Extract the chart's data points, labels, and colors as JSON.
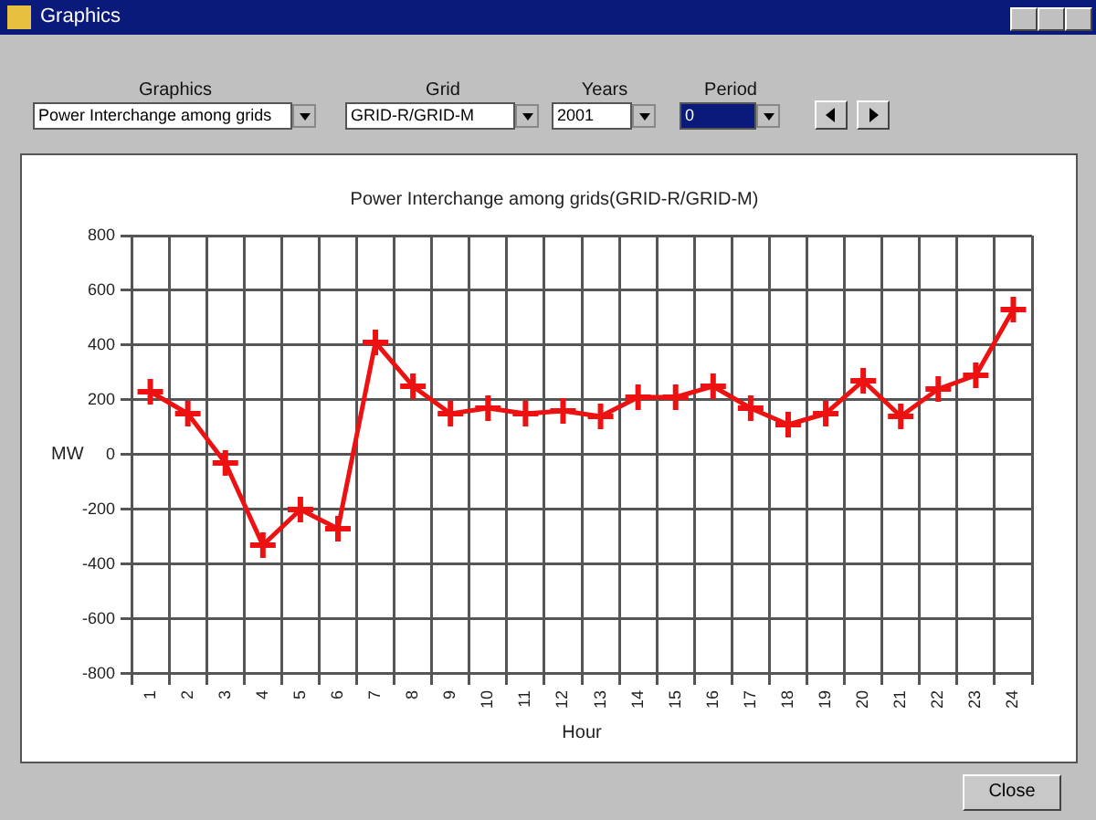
{
  "chart_data": {
    "type": "line",
    "title": "Power Interchange among grids(GRID-R/GRID-M)",
    "xlabel": "Hour",
    "ylabel": "MW",
    "categories": [
      "1",
      "2",
      "3",
      "4",
      "5",
      "6",
      "7",
      "8",
      "9",
      "10",
      "11",
      "12",
      "13",
      "14",
      "15",
      "16",
      "17",
      "18",
      "19",
      "20",
      "21",
      "22",
      "23",
      "24"
    ],
    "series": [
      {
        "color": "#ee1111",
        "values": [
          230,
          150,
          -30,
          -330,
          -200,
          -270,
          410,
          250,
          150,
          170,
          150,
          160,
          140,
          210,
          210,
          250,
          170,
          110,
          150,
          270,
          140,
          240,
          290,
          530
        ]
      }
    ],
    "ylim": [
      -800,
      800
    ],
    "yticks": [
      -800,
      -600,
      -400,
      -200,
      0,
      200,
      400,
      600,
      800
    ],
    "grid": true,
    "legend": false,
    "marker": "cross",
    "line_style": "solid",
    "annotations": [
      "Graphics",
      "Graphics",
      "Grid",
      "Years",
      "Period",
      "Power Interchange among grids",
      "GRID-R/GRID-M",
      "2001",
      "0",
      "Close"
    ]
  }
}
